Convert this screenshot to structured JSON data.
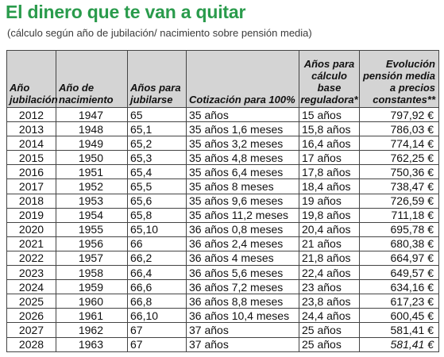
{
  "title": "El dinero que te van a quitar",
  "subtitle": "(cálculo según año de jubilación/ nacimiento sobre pensión media)",
  "table": {
    "headers": [
      "Año jubilación",
      "Año de nacimiento",
      "Años para jubilarse",
      "Cotización para 100%",
      "Años para cálculo base reguladora*",
      "Evolución pensión media a precios constantes**"
    ],
    "rows": [
      [
        "2012",
        "1947",
        "65",
        "35 años",
        "15 años",
        "797,92 €"
      ],
      [
        "2013",
        "1948",
        "65,1",
        "35 años 1,6 meses",
        "15,8 años",
        "786,03 €"
      ],
      [
        "2014",
        "1949",
        "65,2",
        "35 años 3,2 meses",
        "16,4 años",
        "774,14 €"
      ],
      [
        "2015",
        "1950",
        "65,3",
        "35 años 4,8 meses",
        "17 años",
        "762,25 €"
      ],
      [
        "2016",
        "1951",
        "65,4",
        "35 años 6,4 meses",
        "17,8 años",
        "750,36 €"
      ],
      [
        "2017",
        "1952",
        "65,5",
        "35 años 8  meses",
        "18,4 años",
        "738,47 €"
      ],
      [
        "2018",
        "1953",
        "65,6",
        "35 años 9,6 meses",
        "19 años",
        "726,59 €"
      ],
      [
        "2019",
        "1954",
        "65,8",
        "35 años 11,2 meses",
        "19,8 años",
        "711,18 €"
      ],
      [
        "2020",
        "1955",
        "65,10",
        "36 años 0,8 meses",
        "20,4 años",
        "695,78 €"
      ],
      [
        "2021",
        "1956",
        "66",
        "36 años 2,4 meses",
        "21 años",
        "680,38 €"
      ],
      [
        "2022",
        "1957",
        "66,2",
        "36 años 4 meses",
        "21,8 años",
        "664,97 €"
      ],
      [
        "2023",
        "1958",
        "66,4",
        "36 años 5,6 meses",
        "22,4 años",
        "649,57 €"
      ],
      [
        "2024",
        "1959",
        "66,6",
        "36 años 7,2 meses",
        "23 años",
        "634,16 €"
      ],
      [
        "2025",
        "1960",
        "66,8",
        "36 años 8,8 meses",
        "23,8 años",
        "617,23 €"
      ],
      [
        "2026",
        "1961",
        "66,10",
        "36 años 10,4 meses",
        "24,4 años",
        "600,45 €"
      ],
      [
        "2027",
        "1962",
        "67",
        "37 años",
        "25 años",
        "581,41 €"
      ],
      [
        "2028",
        "1963",
        "67",
        "37 años",
        "25 años",
        "581,41 €"
      ]
    ],
    "italic_last_cell_row": 16
  },
  "colors": {
    "title": "#2a9b4c",
    "header_bg": "#d4d4d4",
    "border": "#444444"
  }
}
